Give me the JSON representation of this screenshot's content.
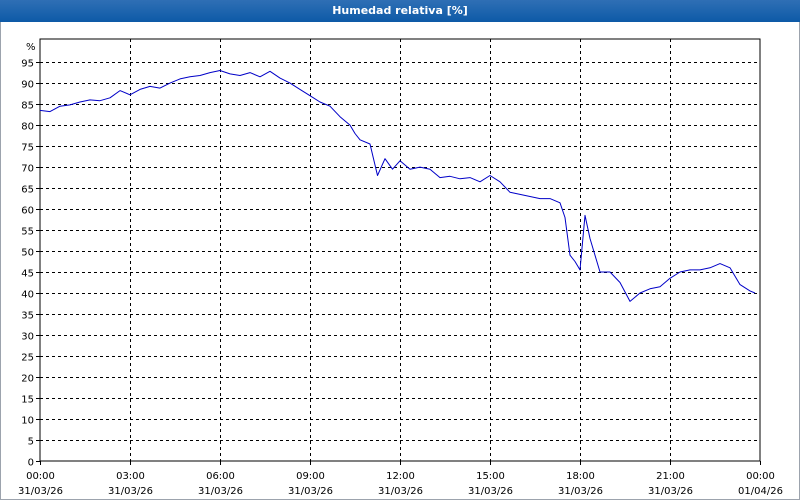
{
  "window": {
    "title": "Humedad relativa [%]"
  },
  "chart_data": {
    "type": "line",
    "title": "Humedad relativa [%]",
    "ylabel": "%",
    "xlabel": "",
    "ylim": [
      0,
      100
    ],
    "y_ticks": [
      0,
      5,
      10,
      15,
      20,
      25,
      30,
      35,
      40,
      45,
      50,
      55,
      60,
      65,
      70,
      75,
      80,
      85,
      90,
      95
    ],
    "xlim": [
      "2026-03-31 00:00",
      "2026-04-01 00:00"
    ],
    "x_ticks": [
      {
        "time": "00:00",
        "date": "31/03/26"
      },
      {
        "time": "03:00",
        "date": "31/03/26"
      },
      {
        "time": "06:00",
        "date": "31/03/26"
      },
      {
        "time": "09:00",
        "date": "31/03/26"
      },
      {
        "time": "12:00",
        "date": "31/03/26"
      },
      {
        "time": "15:00",
        "date": "31/03/26"
      },
      {
        "time": "18:00",
        "date": "31/03/26"
      },
      {
        "time": "21:00",
        "date": "31/03/26"
      },
      {
        "time": "00:00",
        "date": "01/04/26"
      }
    ],
    "grid": true,
    "colors": {
      "series": "#0000c8",
      "grid": "#000000"
    },
    "series": [
      {
        "x": [
          "00:00",
          "00:20",
          "00:40",
          "01:00",
          "01:20",
          "01:40",
          "02:00",
          "02:20",
          "02:40",
          "03:00",
          "03:20",
          "03:40",
          "04:00",
          "04:20",
          "04:40",
          "05:00",
          "05:20",
          "05:40",
          "06:00",
          "06:20",
          "06:40",
          "07:00",
          "07:20",
          "07:40",
          "08:00",
          "08:20",
          "08:40",
          "09:00",
          "09:20",
          "09:40",
          "10:00",
          "10:20",
          "10:30",
          "10:40",
          "11:00",
          "11:15",
          "11:30",
          "11:45",
          "12:00",
          "12:20",
          "12:40",
          "13:00",
          "13:20",
          "13:40",
          "14:00",
          "14:20",
          "14:40",
          "15:00",
          "15:20",
          "15:40",
          "16:00",
          "16:20",
          "16:40",
          "17:00",
          "17:20",
          "17:30",
          "17:40",
          "17:50",
          "18:00",
          "18:10",
          "18:20",
          "18:40",
          "19:00",
          "19:20",
          "19:40",
          "20:00",
          "20:20",
          "20:40",
          "21:00",
          "21:20",
          "21:40",
          "22:00",
          "22:20",
          "22:40",
          "23:00",
          "23:20",
          "23:40",
          "23:50"
        ],
        "values": [
          83.5,
          83.2,
          84.5,
          84.8,
          85.5,
          86.0,
          85.8,
          86.5,
          88.2,
          87.2,
          88.5,
          89.2,
          88.8,
          90.0,
          91.0,
          91.5,
          91.8,
          92.5,
          93.0,
          92.2,
          91.8,
          92.5,
          91.5,
          92.8,
          91.2,
          90.0,
          88.5,
          87.0,
          85.5,
          84.5,
          82.0,
          80.0,
          78.0,
          76.5,
          75.5,
          68.0,
          72.0,
          69.5,
          71.5,
          69.5,
          70.0,
          69.5,
          67.5,
          67.8,
          67.2,
          67.5,
          66.5,
          68.0,
          66.5,
          64.0,
          63.5,
          63.0,
          62.5,
          62.5,
          61.5,
          58.0,
          49.0,
          47.5,
          45.5,
          58.5,
          53.0,
          45.0,
          45.0,
          42.5,
          38.0,
          40.0,
          41.0,
          41.5,
          43.5,
          45.0,
          45.5,
          45.5,
          46.0,
          47.0,
          46.0,
          42.0,
          40.5,
          40.0
        ]
      }
    ]
  }
}
